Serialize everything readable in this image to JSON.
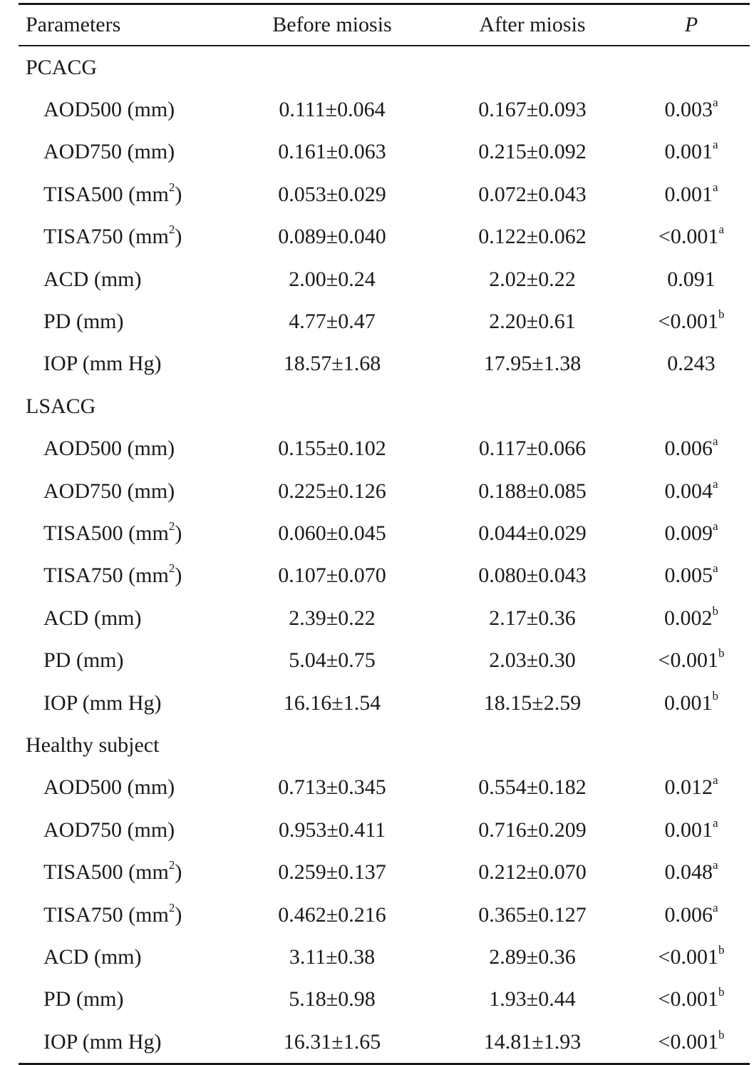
{
  "header": {
    "parameters": "Parameters",
    "before": "Before miosis",
    "after": "After miosis",
    "p": "P"
  },
  "groups": [
    {
      "name": "PCACG",
      "rows": [
        {
          "param": "AOD500 (mm)",
          "sup": "",
          "unit_close": "",
          "before": "0.111±0.064",
          "after": "0.167±0.093",
          "p": "0.003",
          "note": "a"
        },
        {
          "param": "AOD750 (mm)",
          "sup": "",
          "unit_close": "",
          "before": "0.161±0.063",
          "after": "0.215±0.092",
          "p": "0.001",
          "note": "a"
        },
        {
          "param": "TISA500 (mm",
          "sup": "2",
          "unit_close": ")",
          "before": "0.053±0.029",
          "after": "0.072±0.043",
          "p": "0.001",
          "note": "a"
        },
        {
          "param": "TISA750 (mm",
          "sup": "2",
          "unit_close": ")",
          "before": "0.089±0.040",
          "after": "0.122±0.062",
          "p": "<0.001",
          "note": "a"
        },
        {
          "param": "ACD (mm)",
          "sup": "",
          "unit_close": "",
          "before": "2.00±0.24",
          "after": "2.02±0.22",
          "p": "0.091",
          "note": ""
        },
        {
          "param": "PD (mm)",
          "sup": "",
          "unit_close": "",
          "before": "4.77±0.47",
          "after": "2.20±0.61",
          "p": "<0.001",
          "note": "b"
        },
        {
          "param": "IOP (mm Hg)",
          "sup": "",
          "unit_close": "",
          "before": "18.57±1.68",
          "after": "17.95±1.38",
          "p": "0.243",
          "note": ""
        }
      ]
    },
    {
      "name": "LSACG",
      "rows": [
        {
          "param": "AOD500 (mm)",
          "sup": "",
          "unit_close": "",
          "before": "0.155±0.102",
          "after": "0.117±0.066",
          "p": "0.006",
          "note": "a"
        },
        {
          "param": "AOD750 (mm)",
          "sup": "",
          "unit_close": "",
          "before": "0.225±0.126",
          "after": "0.188±0.085",
          "p": "0.004",
          "note": "a"
        },
        {
          "param": "TISA500 (mm",
          "sup": "2",
          "unit_close": ")",
          "before": "0.060±0.045",
          "after": "0.044±0.029",
          "p": "0.009",
          "note": "a"
        },
        {
          "param": "TISA750 (mm",
          "sup": "2",
          "unit_close": ")",
          "before": "0.107±0.070",
          "after": "0.080±0.043",
          "p": "0.005",
          "note": "a"
        },
        {
          "param": "ACD (mm)",
          "sup": "",
          "unit_close": "",
          "before": "2.39±0.22",
          "after": "2.17±0.36",
          "p": "0.002",
          "note": "b"
        },
        {
          "param": "PD (mm)",
          "sup": "",
          "unit_close": "",
          "before": "5.04±0.75",
          "after": "2.03±0.30",
          "p": "<0.001",
          "note": "b"
        },
        {
          "param": "IOP (mm Hg)",
          "sup": "",
          "unit_close": "",
          "before": "16.16±1.54",
          "after": "18.15±2.59",
          "p": "0.001",
          "note": "b"
        }
      ]
    },
    {
      "name": "Healthy subject",
      "rows": [
        {
          "param": "AOD500 (mm)",
          "sup": "",
          "unit_close": "",
          "before": "0.713±0.345",
          "after": "0.554±0.182",
          "p": "0.012",
          "note": "a"
        },
        {
          "param": "AOD750 (mm)",
          "sup": "",
          "unit_close": "",
          "before": "0.953±0.411",
          "after": "0.716±0.209",
          "p": "0.001",
          "note": "a"
        },
        {
          "param": "TISA500 (mm",
          "sup": "2",
          "unit_close": ")",
          "before": "0.259±0.137",
          "after": "0.212±0.070",
          "p": "0.048",
          "note": "a"
        },
        {
          "param": "TISA750 (mm",
          "sup": "2",
          "unit_close": ")",
          "before": "0.462±0.216",
          "after": "0.365±0.127",
          "p": "0.006",
          "note": "a"
        },
        {
          "param": "ACD (mm)",
          "sup": "",
          "unit_close": "",
          "before": "3.11±0.38",
          "after": "2.89±0.36",
          "p": "<0.001",
          "note": "b"
        },
        {
          "param": "PD (mm)",
          "sup": "",
          "unit_close": "",
          "before": "5.18±0.98",
          "after": "1.93±0.44",
          "p": "<0.001",
          "note": "b"
        },
        {
          "param": "IOP (mm Hg)",
          "sup": "",
          "unit_close": "",
          "before": "16.31±1.65",
          "after": "14.81±1.93",
          "p": "<0.001",
          "note": "b"
        }
      ]
    }
  ]
}
